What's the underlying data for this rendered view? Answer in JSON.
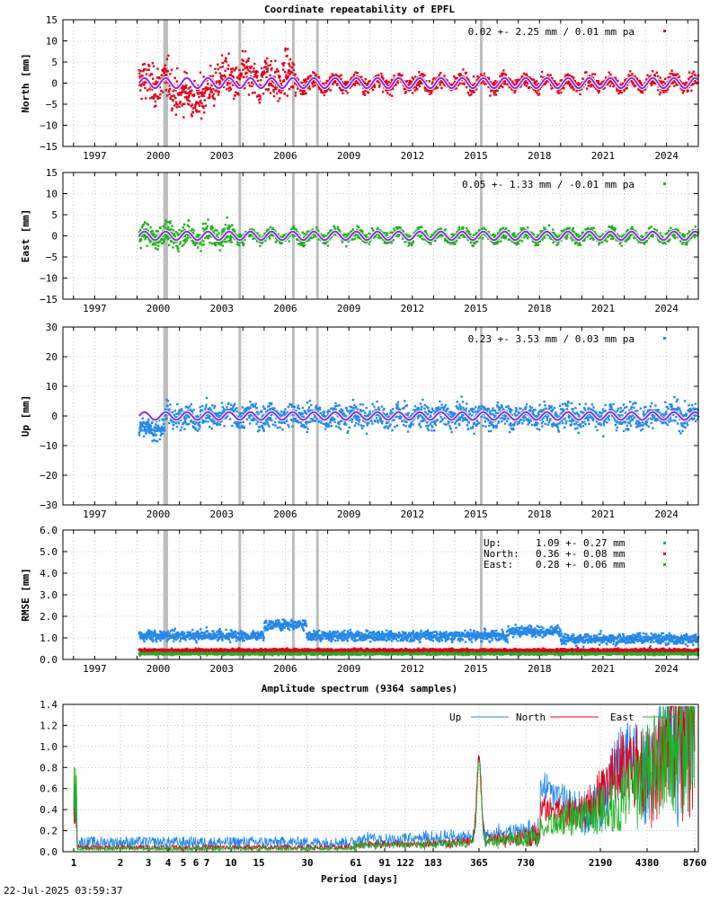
{
  "timestamp": "22-Jul-2025 03:59:37",
  "colors": {
    "north": "#e0001a",
    "east": "#20b020",
    "up": "#2288ee",
    "model": "#8a2be2",
    "gap": "#bdbdbd",
    "grid": "#999999"
  },
  "chart_data": [
    {
      "type": "scatter",
      "title": "Coordinate repeatability of EPFL",
      "ylabel": "North [mm]",
      "ylim": [
        -15,
        15
      ],
      "yticks": [
        "15",
        "10",
        "5",
        "0",
        "−5",
        "−10",
        "−15"
      ],
      "xlim": [
        1995.5,
        2025.5
      ],
      "xticks": [
        "1997",
        "2000",
        "2003",
        "2006",
        "2009",
        "2012",
        "2015",
        "2018",
        "2021",
        "2024"
      ],
      "legend": "0.02 +- 2.25 mm /  0.01 mm pa",
      "series": [
        {
          "values_summary": {
            "start": 1999.1,
            "end": 2025.5,
            "mean": 0.02,
            "std": 2.25
          }
        }
      ]
    },
    {
      "type": "scatter",
      "ylabel": "East [mm]",
      "ylim": [
        -15,
        15
      ],
      "yticks": [
        "15",
        "10",
        "5",
        "0",
        "−5",
        "−10",
        "−15"
      ],
      "xticks": [
        "1997",
        "2000",
        "2003",
        "2006",
        "2009",
        "2012",
        "2015",
        "2018",
        "2021",
        "2024"
      ],
      "legend": "0.05 +- 1.33 mm / -0.01 mm pa",
      "series": [
        {
          "values_summary": {
            "start": 1999.1,
            "end": 2025.5,
            "mean": 0.05,
            "std": 1.33
          }
        }
      ]
    },
    {
      "type": "scatter",
      "ylabel": "Up [mm]",
      "ylim": [
        -30,
        30
      ],
      "yticks": [
        "30",
        "20",
        "10",
        "0",
        "−10",
        "−20",
        "−30"
      ],
      "xticks": [
        "1997",
        "2000",
        "2003",
        "2006",
        "2009",
        "2012",
        "2015",
        "2018",
        "2021",
        "2024"
      ],
      "legend": "0.23 +- 3.53 mm /  0.03 mm pa",
      "series": [
        {
          "values_summary": {
            "start": 1999.1,
            "end": 2025.5,
            "mean": 0.23,
            "std": 3.53
          }
        }
      ]
    },
    {
      "type": "scatter",
      "ylabel": "RMSE [mm]",
      "ylim": [
        0,
        6
      ],
      "yticks": [
        "6.0",
        "5.0",
        "4.0",
        "3.0",
        "2.0",
        "1.0",
        "0.0"
      ],
      "xticks": [
        "1997",
        "2000",
        "2003",
        "2006",
        "2009",
        "2012",
        "2015",
        "2018",
        "2021",
        "2024"
      ],
      "legend": [
        {
          "name": "Up:",
          "value": "1.09 +- 0.27 mm"
        },
        {
          "name": "North:",
          "value": "0.36 +- 0.08 mm"
        },
        {
          "name": "East:",
          "value": "0.28 +- 0.06 mm"
        }
      ]
    },
    {
      "type": "line",
      "title": "Amplitude spectrum (9364 samples)",
      "xlabel": "Period [days]",
      "ylim": [
        0,
        1.4
      ],
      "yticks": [
        "1.4",
        "1.2",
        "1.0",
        "0.8",
        "0.6",
        "0.4",
        "0.2",
        "0.0"
      ],
      "x_scale": "reciprocal",
      "xticks": [
        "1",
        "2",
        "3",
        "4",
        "5",
        "6",
        "7",
        "10",
        "15",
        "30",
        "61",
        "91",
        "122",
        "183",
        "365",
        "730",
        "2190",
        "4380",
        "8760"
      ],
      "series": [
        {
          "name": "Up",
          "peaks": [
            {
              "period": 365,
              "amplitude": 0.87
            },
            {
              "period": 2190,
              "amplitude": 0.65
            }
          ]
        },
        {
          "name": "North",
          "peaks": [
            {
              "period": 365,
              "amplitude": 0.87
            },
            {
              "period": 2190,
              "amplitude": 0.55
            }
          ]
        },
        {
          "name": "East",
          "peaks": [
            {
              "period": 365,
              "amplitude": 0.82
            }
          ]
        }
      ]
    }
  ]
}
